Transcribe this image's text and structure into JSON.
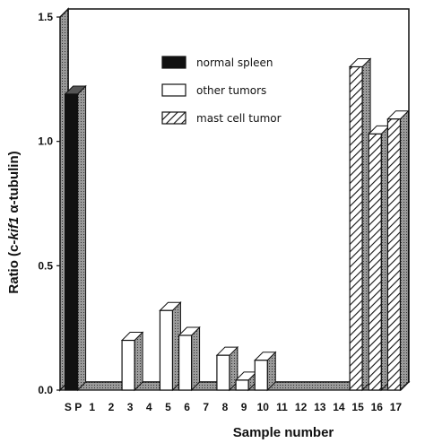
{
  "chart_data": {
    "type": "bar",
    "ylabel_parts": {
      "prefix": "Ratio (c-",
      "italic": "kif1",
      "suffix": " α-tubulin)"
    },
    "xlabel": "Sample number",
    "ylim": [
      0,
      1.5
    ],
    "yticks": [
      "0.0",
      "0.5",
      "1.0",
      "1.5"
    ],
    "categories": [
      "S P",
      "1",
      "2",
      "3",
      "4",
      "5",
      "6",
      "7",
      "8",
      "9",
      "10",
      "11",
      "12",
      "13",
      "14",
      "15",
      "16",
      "17"
    ],
    "values": [
      1.19,
      0.0,
      0.0,
      0.2,
      0.0,
      0.32,
      0.22,
      0.0,
      0.14,
      0.04,
      0.12,
      0.0,
      0.0,
      0.0,
      0.0,
      1.3,
      1.03,
      1.09
    ],
    "groups": [
      "normal",
      "other",
      "other",
      "other",
      "other",
      "other",
      "other",
      "other",
      "other",
      "other",
      "other",
      "other",
      "other",
      "other",
      "other",
      "mast",
      "mast",
      "mast"
    ],
    "legend": [
      {
        "key": "normal",
        "label": "normal spleen"
      },
      {
        "key": "other",
        "label": "other tumors"
      },
      {
        "key": "mast",
        "label": "mast cell tumor"
      }
    ],
    "legend_position": "upper center",
    "grid": false
  }
}
